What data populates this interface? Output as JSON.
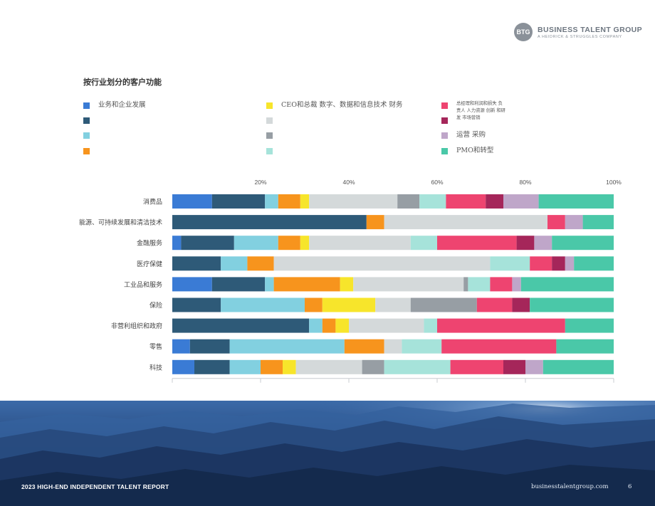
{
  "brand": {
    "badge": "BTG",
    "name": "BUSINESS TALENT GROUP",
    "tagline": "A HEIDRICK & STRUGGLES COMPANY"
  },
  "footer": {
    "report_title": "2023 HIGH-END INDEPENDENT TALENT REPORT",
    "website": "businesstalentgroup.com",
    "page_number": "6"
  },
  "chart_data": {
    "type": "bar",
    "orientation": "horizontal",
    "stacked": true,
    "title": "按行业划分的客户功能",
    "x_ticks": [
      "20%",
      "40%",
      "60%",
      "80%",
      "100%"
    ],
    "xlim": [
      0,
      100
    ],
    "grid": false,
    "legend_position": "top",
    "categories": [
      "消费品",
      "能源、可持续发展和清洁技术",
      "金融服务",
      "医疗保健",
      "工业品和服务",
      "保险",
      "非营利组织和政府",
      "零售",
      "科技"
    ],
    "legend": [
      {
        "label": "业务和企业发展",
        "color": "#3a7bd5"
      },
      {
        "label": "",
        "color": "#2e5a78"
      },
      {
        "label": "",
        "color": "#82d0e0"
      },
      {
        "label": "",
        "color": "#f7941d"
      },
      {
        "label": "CEO和总裁 数字、数据和信息技术 财务",
        "color": "#f7e52b"
      },
      {
        "label": "",
        "color": "#d4d9da"
      },
      {
        "label": "",
        "color": "#979ea4"
      },
      {
        "label": "",
        "color": "#a6e3da"
      },
      {
        "label": "总经理和利润和损失 负责人 人力资源 创新 和研发 市场营销",
        "color": "#ee4470"
      },
      {
        "label": "",
        "color": "#a5265a"
      },
      {
        "label": "运营 采购",
        "color": "#bfa6c9"
      },
      {
        "label": "PMO和转型",
        "color": "#4ac8a8"
      }
    ],
    "series": [
      {
        "color": "#3a7bd5",
        "values": [
          9,
          0,
          2,
          0,
          9,
          0,
          0,
          4,
          5
        ]
      },
      {
        "color": "#2e5a78",
        "values": [
          12,
          44,
          12,
          11,
          12,
          11,
          31,
          9,
          8
        ]
      },
      {
        "color": "#82d0e0",
        "values": [
          3,
          0,
          10,
          6,
          2,
          19,
          3,
          26,
          7
        ]
      },
      {
        "color": "#f7941d",
        "values": [
          5,
          4,
          5,
          6,
          15,
          4,
          3,
          9,
          5
        ]
      },
      {
        "color": "#f7e52b",
        "values": [
          2,
          0,
          2,
          0,
          3,
          12,
          3,
          0,
          3
        ]
      },
      {
        "color": "#d4d9da",
        "values": [
          20,
          37,
          23,
          49,
          25,
          8,
          17,
          4,
          15
        ]
      },
      {
        "color": "#979ea4",
        "values": [
          5,
          0,
          0,
          0,
          1,
          15,
          0,
          0,
          5
        ]
      },
      {
        "color": "#a6e3da",
        "values": [
          6,
          0,
          6,
          9,
          5,
          0,
          3,
          9,
          15
        ]
      },
      {
        "color": "#ee4470",
        "values": [
          9,
          4,
          18,
          5,
          5,
          8,
          29,
          26,
          12
        ]
      },
      {
        "color": "#a5265a",
        "values": [
          4,
          0,
          4,
          3,
          0,
          4,
          0,
          0,
          5
        ]
      },
      {
        "color": "#bfa6c9",
        "values": [
          8,
          4,
          4,
          2,
          2,
          0,
          0,
          0,
          4
        ]
      },
      {
        "color": "#4ac8a8",
        "values": [
          17,
          7,
          14,
          9,
          21,
          19,
          11,
          13,
          16
        ]
      }
    ]
  }
}
